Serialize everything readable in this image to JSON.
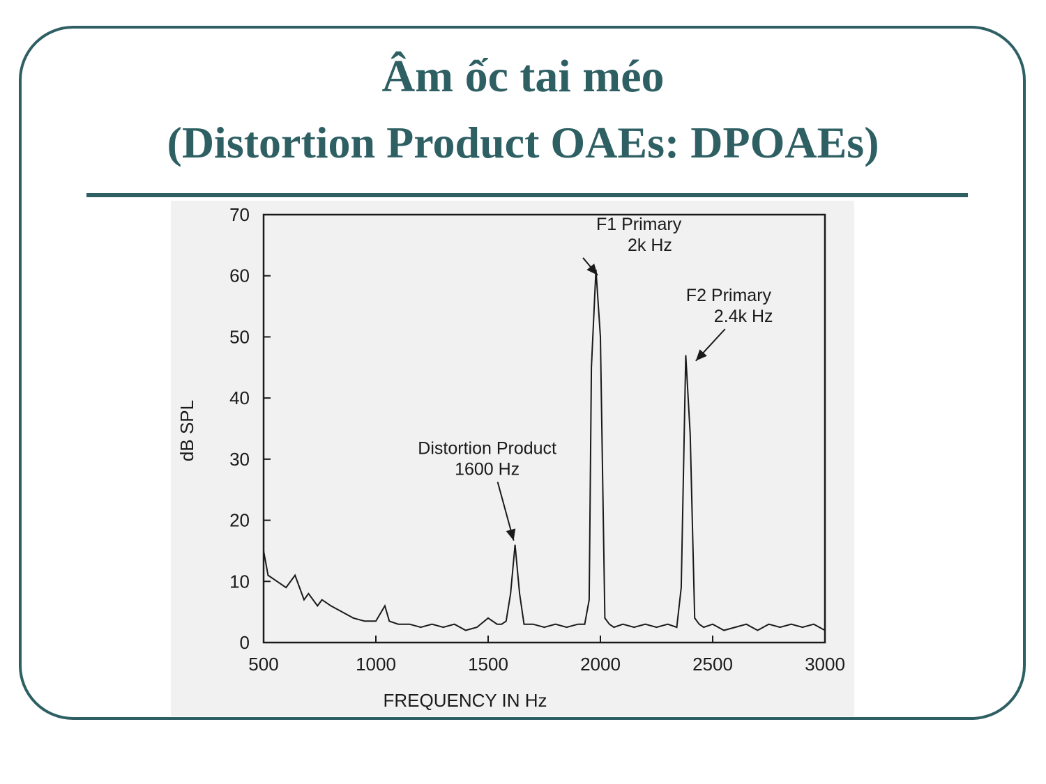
{
  "slide": {
    "title": "Âm ốc tai méo",
    "subtitle": "(Distortion Product OAEs: DPOAEs)",
    "accent_color": "#2e5f63"
  },
  "chart_data": {
    "type": "line",
    "xlabel": "FREQUENCY IN Hz",
    "ylabel": "dB SPL",
    "xlim": [
      500,
      3000
    ],
    "ylim": [
      0,
      70
    ],
    "xticks": [
      500,
      1000,
      1500,
      2000,
      2500,
      3000
    ],
    "yticks": [
      0,
      10,
      20,
      30,
      40,
      50,
      60,
      70
    ],
    "grid": false,
    "series": [
      {
        "x": [
          500,
          520,
          560,
          600,
          640,
          680,
          700,
          740,
          760,
          800,
          850,
          900,
          950,
          1000,
          1040,
          1060,
          1100,
          1150,
          1200,
          1250,
          1300,
          1350,
          1400,
          1450,
          1500,
          1540,
          1560,
          1580,
          1600,
          1620,
          1640,
          1660,
          1700,
          1750,
          1800,
          1850,
          1900,
          1930,
          1950,
          1960,
          1980,
          2000,
          2020,
          2040,
          2060,
          2100,
          2150,
          2200,
          2250,
          2300,
          2340,
          2360,
          2380,
          2400,
          2420,
          2440,
          2460,
          2500,
          2550,
          2600,
          2650,
          2700,
          2750,
          2800,
          2850,
          2900,
          2950,
          3000
        ],
        "y": [
          15,
          11,
          10,
          9,
          11,
          7,
          8,
          6,
          7,
          6,
          5,
          4,
          3.5,
          3.5,
          6,
          3.5,
          3,
          3,
          2.5,
          3,
          2.5,
          3,
          2,
          2.5,
          4,
          3,
          3,
          3.5,
          8,
          16,
          8,
          3,
          3,
          2.5,
          3,
          2.5,
          3,
          3,
          7,
          45,
          61,
          50,
          4,
          3,
          2.5,
          3,
          2.5,
          3,
          2.5,
          3,
          2.5,
          9,
          47,
          34,
          4,
          3,
          2.5,
          3,
          2,
          2.5,
          3,
          2,
          3,
          2.5,
          3,
          2.5,
          3,
          2
        ]
      }
    ],
    "annotations": [
      {
        "line1": "F1 Primary",
        "line2": "2k Hz",
        "x": 2000,
        "y": 61
      },
      {
        "line1": "F2 Primary",
        "line2": "2.4k Hz",
        "x": 2400,
        "y": 47
      },
      {
        "line1": "Distortion Product",
        "line2": "1600 Hz",
        "x": 1620,
        "y": 16
      }
    ]
  }
}
